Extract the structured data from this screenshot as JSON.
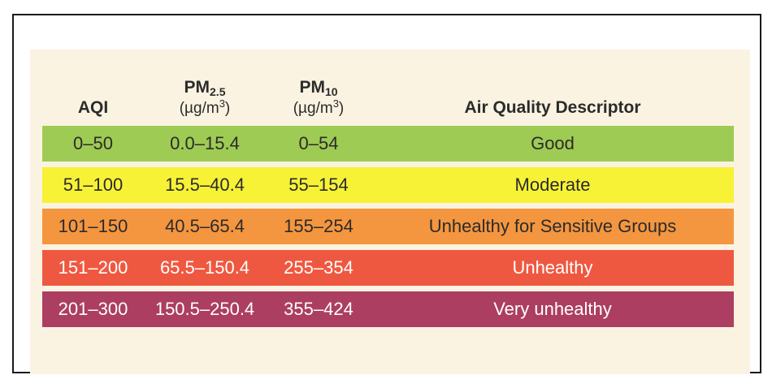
{
  "header": {
    "aqi": "AQI",
    "pm25": {
      "base": "PM",
      "sub": "2.5",
      "unit_prefix": "(µg/m",
      "unit_sup": "3",
      "unit_suffix": ")"
    },
    "pm10": {
      "base": "PM",
      "sub": "10",
      "unit_prefix": "(µg/m",
      "unit_sup": "3",
      "unit_suffix": ")"
    },
    "descriptor": "Air Quality Descriptor"
  },
  "rows": [
    {
      "aqi": "0–50",
      "pm25": "0.0–15.4",
      "pm10": "0–54",
      "descriptor": "Good",
      "color": "#9ecb54"
    },
    {
      "aqi": "51–100",
      "pm25": "15.5–40.4",
      "pm10": "55–154",
      "descriptor": "Moderate",
      "color": "#f7f236"
    },
    {
      "aqi": "101–150",
      "pm25": "40.5–65.4",
      "pm10": "155–254",
      "descriptor": "Unhealthy for Sensitive Groups",
      "color": "#f4963f"
    },
    {
      "aqi": "151–200",
      "pm25": "65.5–150.4",
      "pm10": "255–354",
      "descriptor": "Unhealthy",
      "color": "#ef5840"
    },
    {
      "aqi": "201–300",
      "pm25": "150.5–250.4",
      "pm10": "355–424",
      "descriptor": "Very unhealthy",
      "color": "#ac3e62"
    }
  ]
}
